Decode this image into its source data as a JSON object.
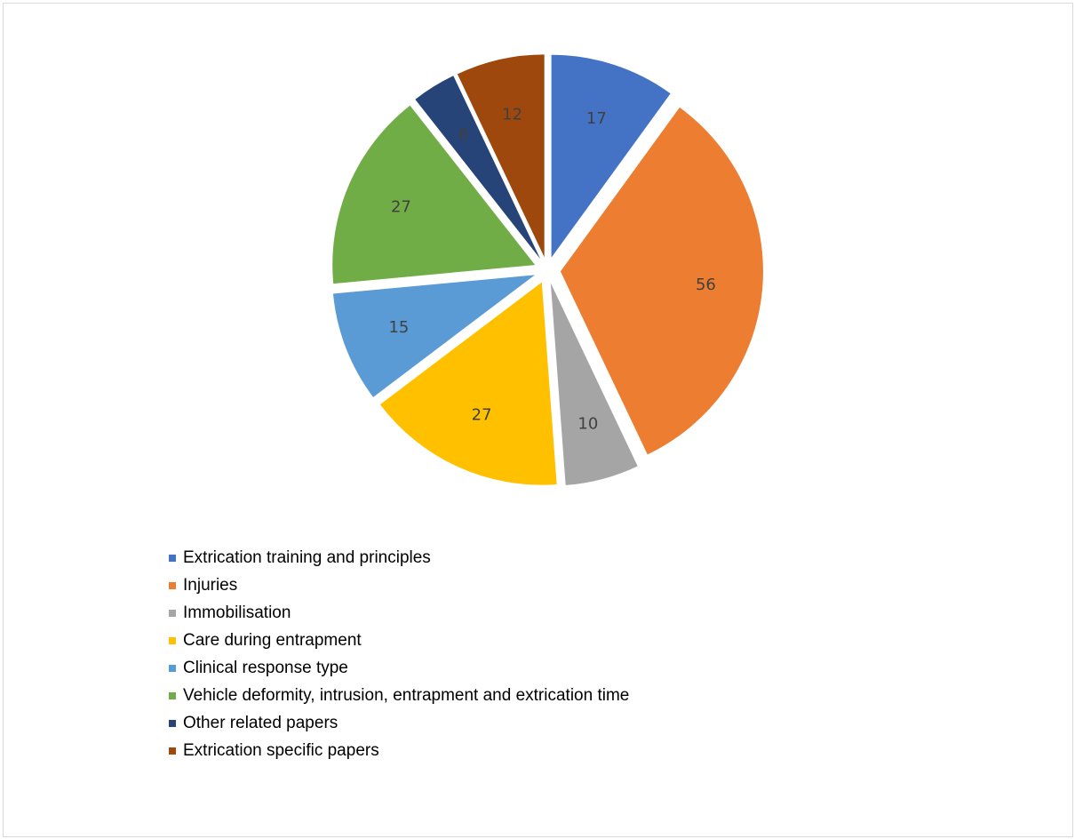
{
  "chart_data": {
    "type": "pie",
    "exploded": true,
    "data_labels": true,
    "legend_position": "bottom",
    "slices": [
      {
        "label": "Extrication training and principles",
        "value": 17,
        "color": "#4472C4"
      },
      {
        "label": "Injuries",
        "value": 56,
        "color": "#ED7D31"
      },
      {
        "label": "Immobilisation",
        "value": 10,
        "color": "#A5A5A5"
      },
      {
        "label": "Care during entrapment",
        "value": 27,
        "color": "#FFC000"
      },
      {
        "label": "Clinical response type",
        "value": 15,
        "color": "#5B9BD5"
      },
      {
        "label": "Vehicle deformity, intrusion, entrapment and extrication time",
        "value": 27,
        "color": "#70AD47"
      },
      {
        "label": "Other related papers",
        "value": 6,
        "color": "#264478"
      },
      {
        "label": "Extrication specific papers",
        "value": 12,
        "color": "#9E480E"
      }
    ]
  }
}
